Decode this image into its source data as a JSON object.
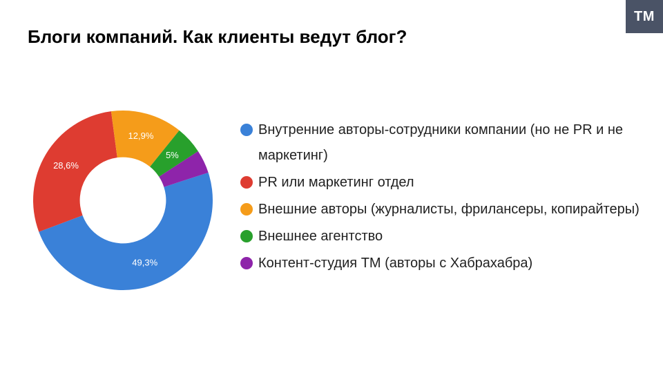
{
  "logo": "TM",
  "title": "Блоги компаний. Как клиенты ведут блог?",
  "chart": {
    "type": "donut",
    "background_color": "#ffffff",
    "inner_radius_ratio": 0.48,
    "slice_label_fontsize": 13,
    "slice_label_color": "#ffffff",
    "slices": [
      {
        "value": 49.3,
        "label": "49,3%",
        "color": "#3a81d8"
      },
      {
        "value": 28.6,
        "label": "28,6%",
        "color": "#de3c31"
      },
      {
        "value": 12.9,
        "label": "12,9%",
        "color": "#f59c1a"
      },
      {
        "value": 5.0,
        "label": "5%",
        "color": "#28a02c"
      },
      {
        "value": 4.2,
        "label": "",
        "color": "#8e24aa"
      }
    ],
    "start_angle_deg": 72
  },
  "legend": {
    "fontsize": 20,
    "text_color": "#212121",
    "items": [
      {
        "color": "#3a81d8",
        "text": "Внутренние авторы-сотрудники компании (но не PR и не маркетинг)"
      },
      {
        "color": "#de3c31",
        "text": "PR или маркетинг отдел"
      },
      {
        "color": "#f59c1a",
        "text": "Внешние авторы (журналисты, фрилансеры, копирайтеры)"
      },
      {
        "color": "#28a02c",
        "text": "Внешнее агентство"
      },
      {
        "color": "#8e24aa",
        "text": "Контент-студия TM (авторы с Хабрахабра)"
      }
    ]
  }
}
